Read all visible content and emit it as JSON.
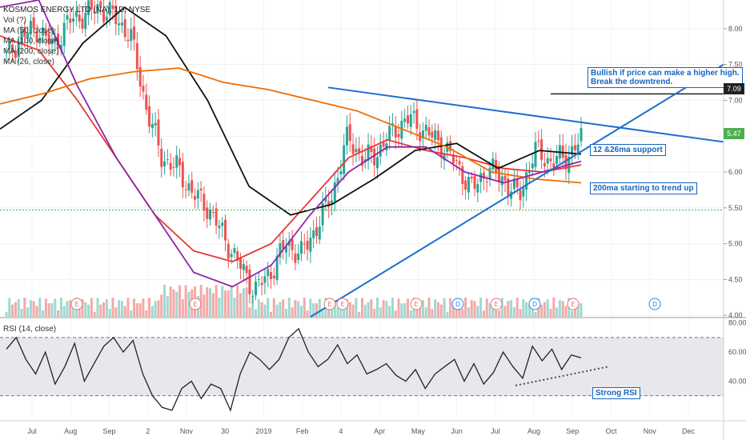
{
  "legend": {
    "title": "KOSMOS ENERGY LTD (NA), 1D, NYSE",
    "vol": "Vol (?)",
    "ma50": "MA (50, close)",
    "ma100": "MA (100, close)",
    "ma200": "MA (200, close)",
    "ma26": "MA (26, close)"
  },
  "rsi_label": "RSI (14, close)",
  "annotations": {
    "bullish": "Bullish if price can make a higher high.\nBreak the downtrend.",
    "support": "12 &26ma support",
    "ma200": "200ma starting to trend up",
    "rsi": "Strong RSI"
  },
  "price_tags": {
    "resistance": "7.09",
    "last": "5.47"
  },
  "colors": {
    "up": "#26a69a",
    "down": "#ef5350",
    "ma50": "#e53935",
    "ma100": "#111111",
    "ma200": "#ef6c00",
    "ma26": "#8e24aa",
    "trendline": "#1e6fcf",
    "rsi": "#222222",
    "rsi_band": "#e8e8ec",
    "last_line": "#4caf50",
    "earnings": "#e57373",
    "dividend": "#1e88e5"
  },
  "chart_data": [
    {
      "type": "candlestick",
      "symbol": "KOS",
      "title": "KOSMOS ENERGY LTD (NA), 1D, NYSE",
      "x_ticks": [
        "Jul",
        "Aug",
        "Sep",
        "2",
        "Nov",
        "30",
        "2019",
        "Feb",
        "4",
        "Apr",
        "May",
        "Jun",
        "Jul",
        "Aug",
        "Sep",
        "Oct",
        "Nov",
        "Dec"
      ],
      "y_ticks": [
        "8.00",
        "7.50",
        "7.00",
        "6.50",
        "6.00",
        "5.50",
        "5.00",
        "4.50",
        "4.00"
      ],
      "ylim": [
        3.98,
        8.4
      ],
      "price_path": [
        {
          "x": "Jul",
          "y": 7.6
        },
        {
          "x": "Jul+",
          "y": 7.9
        },
        {
          "x": "Aug",
          "y": 8.0
        },
        {
          "x": "Aug+",
          "y": 7.75
        },
        {
          "x": "Sep",
          "y": 8.1
        },
        {
          "x": "Sep+",
          "y": 8.2
        },
        {
          "x": "2",
          "y": 8.3
        },
        {
          "x": "2+",
          "y": 8.15
        },
        {
          "x": "Oct",
          "y": 7.9
        },
        {
          "x": "Oct+",
          "y": 6.9
        },
        {
          "x": "Oct++",
          "y": 6.2
        },
        {
          "x": "Nov",
          "y": 6.05
        },
        {
          "x": "Nov+",
          "y": 5.7
        },
        {
          "x": "Nov++",
          "y": 5.5
        },
        {
          "x": "30",
          "y": 5.1
        },
        {
          "x": "Dec",
          "y": 4.7
        },
        {
          "x": "Dec+",
          "y": 4.35
        },
        {
          "x": "2019",
          "y": 4.6
        },
        {
          "x": "Jan",
          "y": 5.0
        },
        {
          "x": "Jan+",
          "y": 4.85
        },
        {
          "x": "Feb",
          "y": 5.25
        },
        {
          "x": "Feb+",
          "y": 5.7
        },
        {
          "x": "4",
          "y": 6.5
        },
        {
          "x": "Mar",
          "y": 6.15
        },
        {
          "x": "Mar+",
          "y": 6.3
        },
        {
          "x": "Apr",
          "y": 6.6
        },
        {
          "x": "Apr+",
          "y": 6.75
        },
        {
          "x": "May",
          "y": 6.55
        },
        {
          "x": "May+",
          "y": 6.4
        },
        {
          "x": "Jun",
          "y": 6.1
        },
        {
          "x": "Jun+",
          "y": 5.75
        },
        {
          "x": "Jul",
          "y": 6.05
        },
        {
          "x": "Jul+",
          "y": 5.9
        },
        {
          "x": "Aug",
          "y": 5.65
        },
        {
          "x": "Aug+",
          "y": 6.3
        },
        {
          "x": "Aug++",
          "y": 6.15
        },
        {
          "x": "Sep",
          "y": 6.2
        },
        {
          "x": "Sep+",
          "y": 6.45
        }
      ],
      "series": [
        {
          "name": "MA (50, close)",
          "values": [
            7.9,
            7.7,
            7.0,
            6.2,
            5.4,
            4.9,
            4.75,
            5.0,
            5.6,
            6.2,
            6.45,
            6.3,
            6.2,
            6.05,
            6.0,
            6.1
          ]
        },
        {
          "name": "MA (100, close)",
          "values": [
            6.6,
            7.0,
            7.8,
            8.3,
            7.9,
            7.0,
            5.8,
            5.4,
            5.55,
            5.9,
            6.3,
            6.4,
            6.05,
            6.3,
            6.25
          ]
        },
        {
          "name": "MA (200, close)",
          "values": [
            6.95,
            7.1,
            7.3,
            7.4,
            7.45,
            7.25,
            7.15,
            7.0,
            6.85,
            6.6,
            6.35,
            6.0,
            5.9,
            5.85
          ]
        },
        {
          "name": "MA (26, close)",
          "values": [
            8.3,
            8.4,
            7.2,
            6.2,
            5.4,
            4.6,
            4.4,
            4.7,
            5.4,
            6.0,
            6.35,
            6.35,
            6.0,
            5.85,
            6.0,
            6.15
          ]
        }
      ],
      "annotations": [
        "Bullish if price can make a higher high.\nBreak the downtrend.",
        "12 &26ma support",
        "200ma starting to trend up"
      ],
      "levels": {
        "resistance": 7.09,
        "last": 5.47
      },
      "events": [
        "E",
        "E",
        "E",
        "E",
        "D",
        "E",
        "D",
        "E",
        "D",
        "E"
      ]
    },
    {
      "type": "line",
      "title": "RSI (14, close)",
      "y_ticks": [
        "80.00",
        "60.00",
        "40.00"
      ],
      "bands": [
        70,
        30
      ],
      "ylim": [
        15,
        82
      ],
      "series": [
        {
          "name": "RSI (14, close)",
          "values": [
            62,
            70,
            55,
            45,
            60,
            38,
            50,
            66,
            40,
            52,
            64,
            70,
            60,
            68,
            45,
            30,
            22,
            20,
            35,
            40,
            28,
            38,
            35,
            20,
            45,
            60,
            55,
            48,
            55,
            70,
            76,
            60,
            50,
            55,
            65,
            52,
            58,
            45,
            48,
            52,
            44,
            40,
            48,
            35,
            45,
            50,
            55,
            40,
            52,
            38,
            46,
            60,
            50,
            42,
            64,
            54,
            62,
            48,
            58,
            56
          ]
        }
      ],
      "annotations": [
        "Strong RSI"
      ]
    }
  ]
}
